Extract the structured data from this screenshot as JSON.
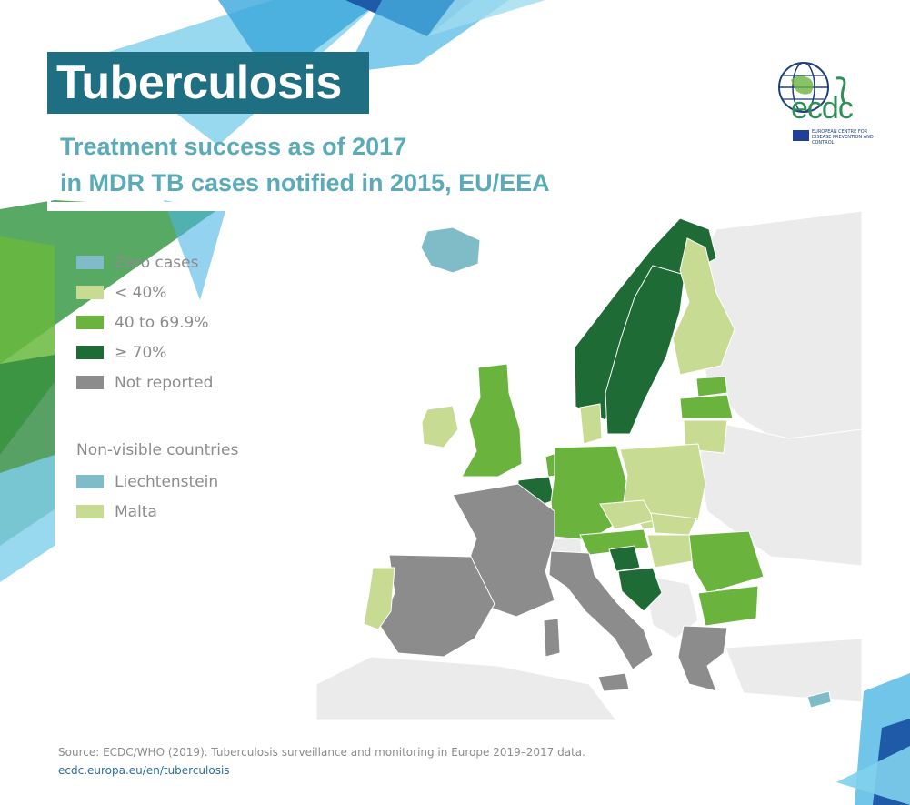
{
  "header": {
    "title": "Tuberculosis",
    "subtitle_line1": "Treatment success as of 2017",
    "subtitle_line2": "in MDR TB cases notified in 2015, EU/EEA"
  },
  "logo": {
    "name": "ecdc",
    "subtitle": "EUROPEAN CENTRE FOR DISEASE PREVENTION AND CONTROL"
  },
  "legend": {
    "items": [
      {
        "label": "Zero cases",
        "color": "#7fbcc7"
      },
      {
        "label": "< 40%",
        "color": "#c7dc92"
      },
      {
        "label": "40 to 69.9%",
        "color": "#6ab43e"
      },
      {
        "label": "≥ 70%",
        "color": "#1e6b36"
      },
      {
        "label": "Not reported",
        "color": "#8c8c8c"
      }
    ]
  },
  "non_visible": {
    "heading": "Non-visible countries",
    "items": [
      {
        "label": "Liechtenstein",
        "color": "#7fbcc7"
      },
      {
        "label": "Malta",
        "color": "#c7dc92"
      }
    ]
  },
  "map": {
    "colors": {
      "zero": "#7fbcc7",
      "lt40": "#c7dc92",
      "mid": "#6ab43e",
      "high": "#1e6b36",
      "nr": "#8c8c8c",
      "outside": "#ebebeb",
      "border": "#ffffff"
    }
  },
  "footer": {
    "source": "Source: ECDC/WHO (2019). Tuberculosis surveillance and monitoring in Europe 2019–2017 data.",
    "url": "ecdc.europa.eu/en/tuberculosis"
  }
}
